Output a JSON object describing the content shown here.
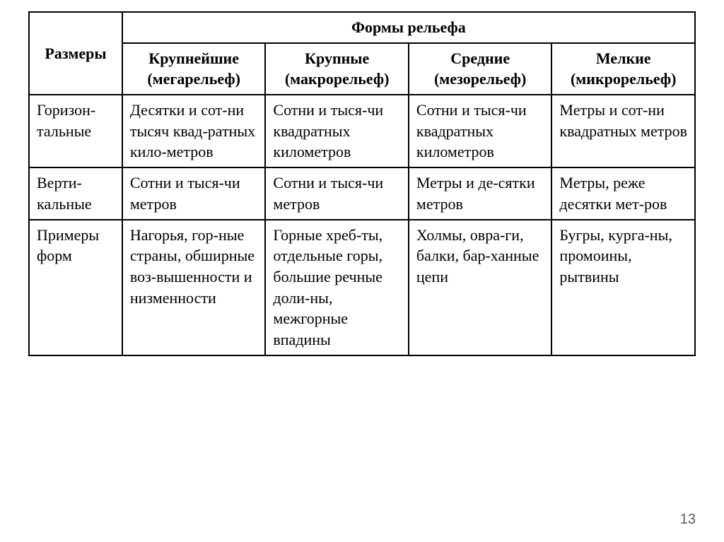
{
  "table": {
    "header": {
      "row_label": "Размеры",
      "group_label": "Формы рельефа",
      "columns": [
        "Крупнейшие (мегарельеф)",
        "Крупные (макрорельеф)",
        "Средние (мезорельеф)",
        "Мелкие (микрорельеф)"
      ]
    },
    "rows": [
      {
        "label": "Горизон-тальные",
        "cells": [
          "Десятки и сот-ни тысяч квад-ратных кило-метров",
          "Сотни и тыся-чи квадратных километров",
          "Сотни и тыся-чи квадратных километров",
          "Метры и сот-ни квадратных метров"
        ]
      },
      {
        "label": "Верти-кальные",
        "cells": [
          "Сотни и тыся-чи метров",
          "Сотни и тыся-чи метров",
          "Метры и де-сятки метров",
          "Метры, реже десятки мет-ров"
        ]
      },
      {
        "label": "Примеры форм",
        "cells": [
          "Нагорья, гор-ные страны, обширные воз-вышенности и низменности",
          "Горные хреб-ты, отдельные горы, большие речные доли-ны, межгорные впадины",
          "Холмы, овра-ги, балки, бар-ханные цепи",
          "Бугры, курга-ны, промоины, рытвины"
        ]
      }
    ]
  },
  "page_number": "13",
  "colors": {
    "background": "#ffffff",
    "border": "#000000",
    "text": "#000000",
    "page_number": "#5a5a5a"
  },
  "typography": {
    "body_font": "Times New Roman, serif",
    "cell_fontsize": 22,
    "page_number_fontsize": 20
  }
}
